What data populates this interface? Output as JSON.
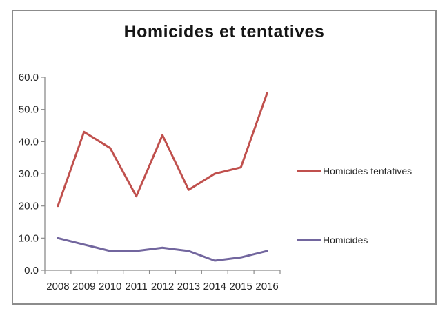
{
  "chart_data": {
    "type": "line",
    "title": "Homicides et tentatives",
    "categories": [
      "2008",
      "2009",
      "2010",
      "2011",
      "2012",
      "2013",
      "2014",
      "2015",
      "2016"
    ],
    "series": [
      {
        "name": "Homicides tentatives",
        "color": "#c0504d",
        "values": [
          20,
          43,
          38,
          23,
          42,
          25,
          30,
          32,
          55
        ]
      },
      {
        "name": "Homicides",
        "color": "#72669e",
        "values": [
          10,
          8,
          6,
          6,
          7,
          6,
          3,
          4,
          6
        ]
      }
    ],
    "xlabel": "",
    "ylabel": "",
    "ylim": [
      0,
      60
    ],
    "ytick_step": 10,
    "ytick_labels": [
      "0.0",
      "10.0",
      "20.0",
      "30.0",
      "40.0",
      "50.0",
      "60.0"
    ],
    "grid": false,
    "legend_position": "right"
  },
  "colors": {
    "axis": "#8c8c8c",
    "tick_label": "#262626",
    "frame_border": "#8c8c8c",
    "title_text": "#151515"
  }
}
